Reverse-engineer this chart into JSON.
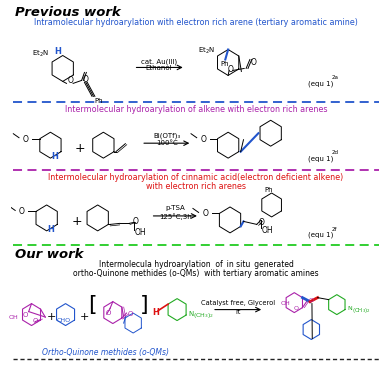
{
  "title_previous": "Previous work",
  "title_our": "Our work",
  "section1_title": "Intramolecular hydroarylation with electron rich arene (tertiary aromatic amine)",
  "section2_title": "Intermolecular hydroarylation of alkene with electron rich arenes",
  "section3_title_line1": "Intermolecular hydroarylation of cinnamic acid(electron deficient alkene)",
  "section3_title_line2": "with electron rich arenes",
  "section4_title_line1": "Intermolecula hydroarylation  of  in situ  generated",
  "section4_title_line2": "ortho-Quinone methides (o-QMs)  with tertiary aromatic amines",
  "reagent1_line1": "cat. Au(III)",
  "reagent1_line2": "Ethanol",
  "reagent2_line1": "Bi(OTf)₃",
  "reagent2_line2": "100°C",
  "reagent3_line1": "p-TSA",
  "reagent3_line2": "125°C,3h",
  "reagent4_line1": "Catalyst free, Glycerol",
  "reagent4_line2": "rt",
  "equ1": "(equ 1)",
  "equ1_sup": "2a",
  "equ2": "(equ 1)",
  "equ2_sup": "2d",
  "equ3": "(equ 1)",
  "equ3_sup": "2f",
  "label_oqm": "Ortho-Quinone methides (o-QMs)",
  "bg_color": "#ffffff",
  "col_blue": "#2255cc",
  "col_purple": "#aa22aa",
  "col_red": "#dd1111",
  "col_green": "#22aa22",
  "col_black": "#000000",
  "col_dline1": "#2255cc",
  "col_dline2": "#aa22aa",
  "col_dline3": "#22cc22",
  "col_dline4": "#222222",
  "col_bond_blue": "#2255cc",
  "col_bond_red": "#dd1111"
}
